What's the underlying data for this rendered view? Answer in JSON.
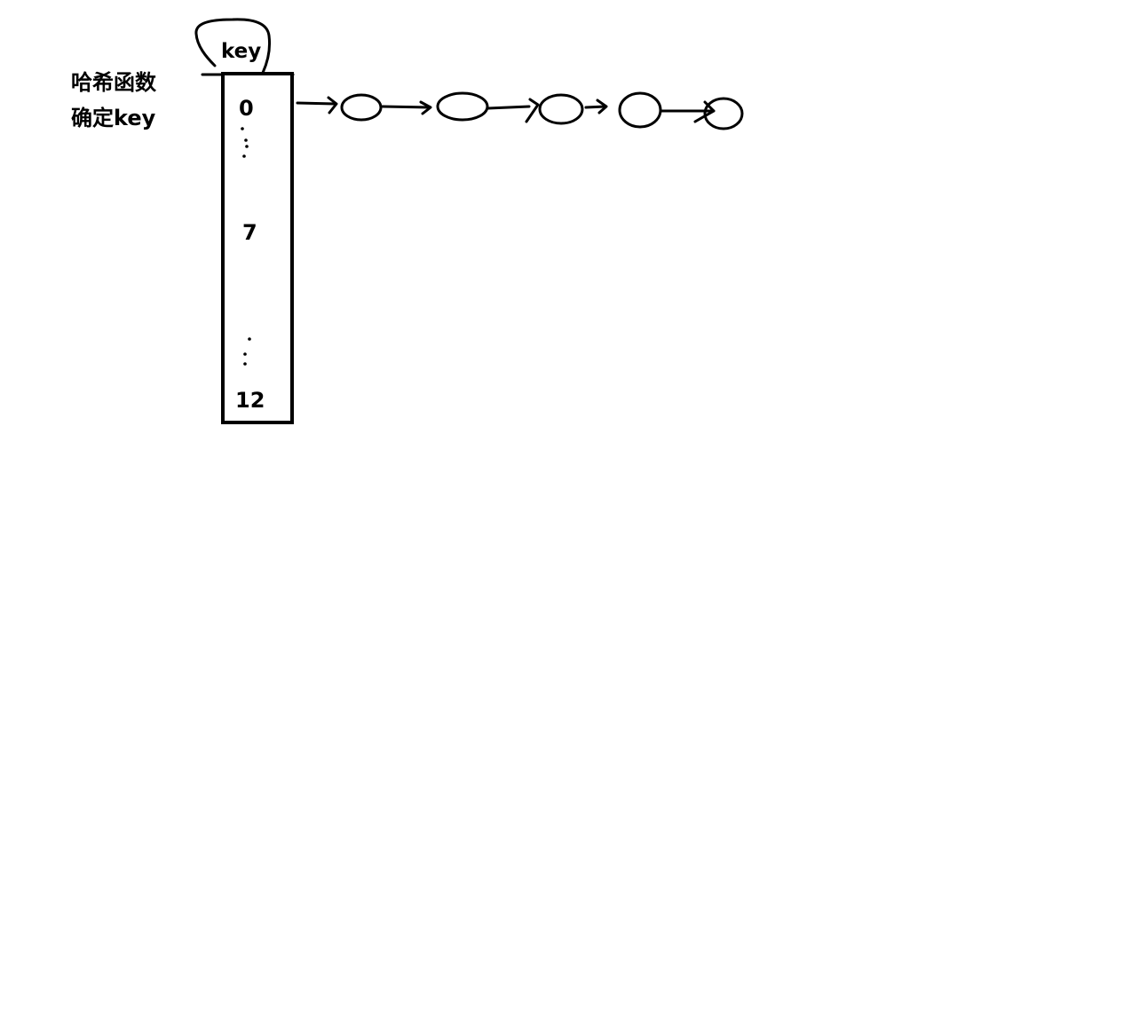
{
  "labels": {
    "hash_function": "哈希函数",
    "determine_key": "确定key",
    "key": "key"
  },
  "array": {
    "first_index": "0",
    "middle_index": "7",
    "last_index": "12"
  },
  "linked_list": {
    "node_count": 5
  },
  "colors": {
    "ink": "#000000",
    "background": "#ffffff"
  }
}
